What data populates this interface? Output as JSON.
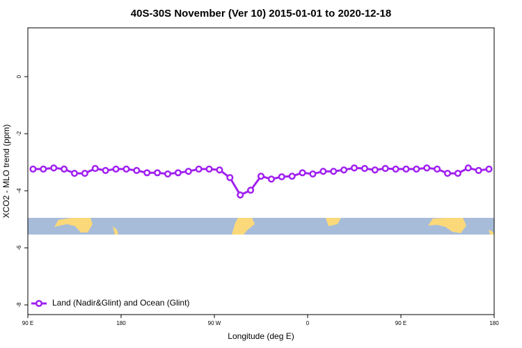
{
  "chart_data": {
    "type": "line",
    "title": "40S-30S November (Ver 10)   2015-01-01 to 2020-12-18",
    "x_label": "Longitude (deg E)",
    "y_label": "XCO2 - MLO trend (ppm)",
    "xlim": [
      90,
      540
    ],
    "xticks": [
      {
        "value": 90,
        "label": "90 E"
      },
      {
        "value": 180,
        "label": "180"
      },
      {
        "value": 270,
        "label": "90 W"
      },
      {
        "value": 360,
        "label": "0"
      },
      {
        "value": 450,
        "label": "90 E"
      },
      {
        "value": 540,
        "label": "180"
      }
    ],
    "ylim": [
      -8.34,
      1.71
    ],
    "yticks": [
      0,
      -2,
      -4,
      -6,
      -8
    ],
    "legend": "bottom-left",
    "x": [
      95,
      105,
      115,
      125,
      135,
      145,
      155,
      165,
      175,
      185,
      195,
      205,
      215,
      225,
      235,
      245,
      255,
      265,
      275,
      285,
      295,
      305,
      315,
      325,
      335,
      345,
      355,
      365,
      375,
      385,
      395,
      405,
      415,
      425,
      435,
      445,
      455,
      465,
      475,
      485,
      495,
      505,
      515,
      525,
      535
    ],
    "series": [
      {
        "name": "Land (Nadir&Glint) and Ocean (Glint)",
        "color": "#a020f0",
        "values": [
          -3.24,
          -3.24,
          -3.2,
          -3.24,
          -3.39,
          -3.39,
          -3.22,
          -3.29,
          -3.24,
          -3.24,
          -3.29,
          -3.37,
          -3.37,
          -3.41,
          -3.37,
          -3.32,
          -3.24,
          -3.24,
          -3.27,
          -3.54,
          -4.15,
          -3.98,
          -3.49,
          -3.59,
          -3.51,
          -3.49,
          -3.37,
          -3.41,
          -3.32,
          -3.32,
          -3.27,
          -3.2,
          -3.22,
          -3.27,
          -3.22,
          -3.24,
          -3.24,
          -3.24,
          -3.2,
          -3.24,
          -3.39,
          -3.39,
          -3.2,
          -3.29,
          -3.24
        ]
      }
    ]
  }
}
